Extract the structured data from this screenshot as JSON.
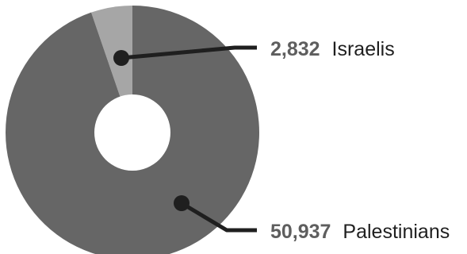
{
  "chart_data": {
    "type": "pie",
    "style": "donut",
    "slices": [
      {
        "value": 2832,
        "value_label": "2,832",
        "name": "Israelis",
        "color": "#a6a6a6"
      },
      {
        "value": 50937,
        "value_label": "50,937",
        "name": "Palestinians",
        "color": "#666666"
      }
    ],
    "colors": {
      "leader": "#1f1f1f",
      "value_text": "#5e5e5e",
      "name_text": "#1f1f1f",
      "hole": "#ffffff"
    }
  }
}
